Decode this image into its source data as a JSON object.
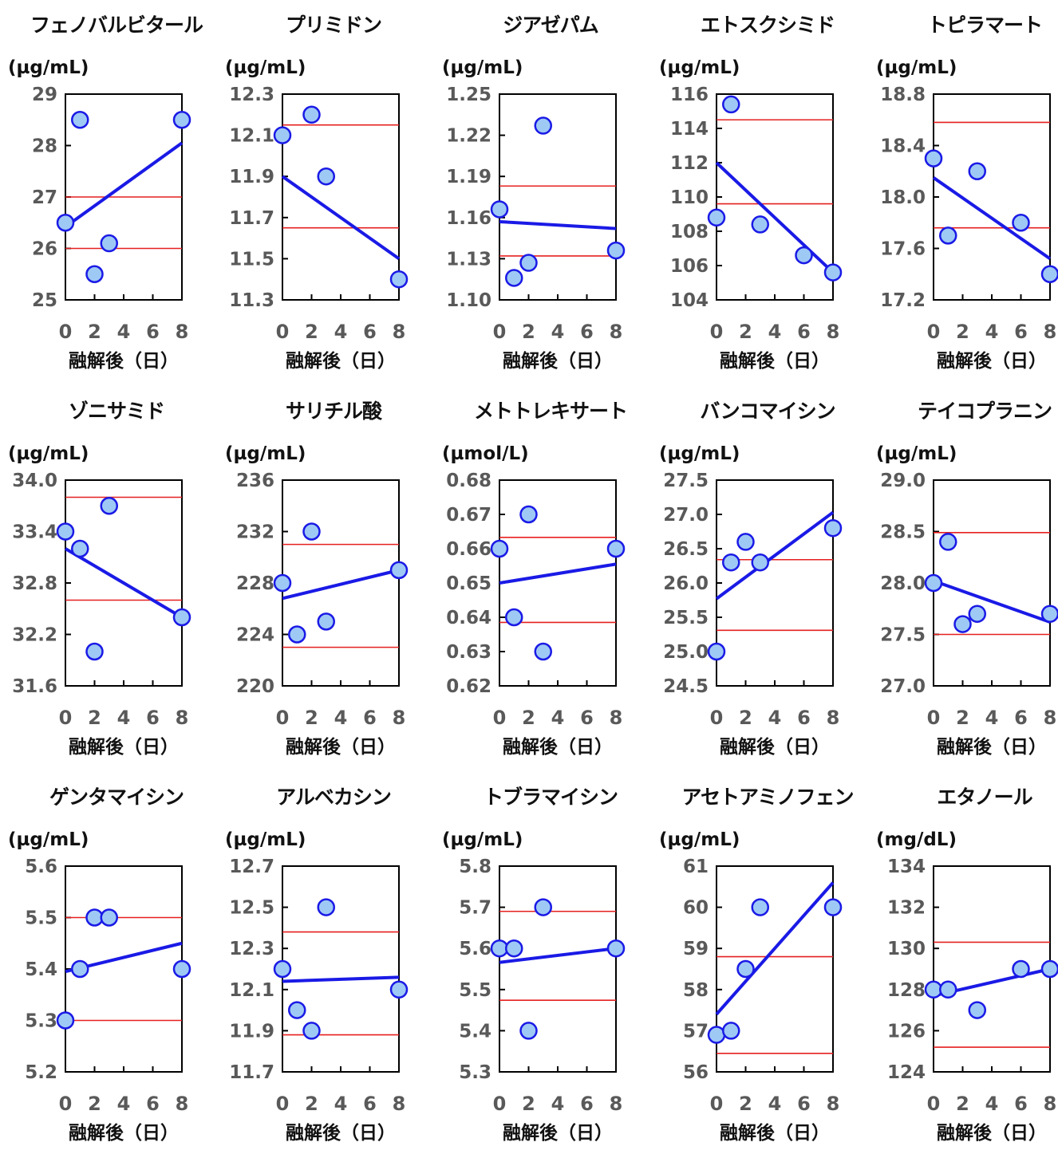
{
  "colors": {
    "point_fill": "#9fc9f5",
    "point_stroke": "#1a1ae6",
    "trend": "#1a1ae6",
    "ref_line": "#e62020",
    "tick_text": "#595959"
  },
  "chart_data": [
    {
      "type": "scatter",
      "title": "フェノバルビタール",
      "unit": "(µg/mL)",
      "ylim": [
        25,
        29
      ],
      "yticks": [
        "25",
        "26",
        "27",
        "28",
        "29"
      ],
      "xticks": [
        "0",
        "2",
        "4",
        "6",
        "8"
      ],
      "xlabel": "融解後（日）",
      "points": [
        [
          0,
          26.5
        ],
        [
          1,
          28.5
        ],
        [
          2,
          25.5
        ],
        [
          3,
          26.1
        ],
        [
          8,
          28.5
        ]
      ],
      "trend": [
        [
          0,
          26.42
        ],
        [
          8,
          28.05
        ]
      ],
      "ref_lines": [
        27.0,
        26.0
      ]
    },
    {
      "type": "scatter",
      "title": "プリミドン",
      "unit": "(µg/mL)",
      "ylim": [
        11.3,
        12.3
      ],
      "yticks": [
        "11.3",
        "11.5",
        "11.7",
        "11.9",
        "12.1",
        "12.3"
      ],
      "xticks": [
        "0",
        "2",
        "4",
        "6",
        "8"
      ],
      "xlabel": "融解後（日）",
      "points": [
        [
          0,
          12.1
        ],
        [
          2,
          12.2
        ],
        [
          3,
          11.9
        ],
        [
          8,
          11.4
        ]
      ],
      "trend": [
        [
          0,
          11.9
        ],
        [
          8,
          11.5
        ]
      ],
      "ref_lines": [
        12.15,
        11.65
      ]
    },
    {
      "type": "scatter",
      "title": "ジアゼパム",
      "unit": "(µg/mL)",
      "ylim": [
        1.1,
        1.25
      ],
      "yticks": [
        "1.10",
        "1.13",
        "1.16",
        "1.19",
        "1.22",
        "1.25"
      ],
      "xticks": [
        "0",
        "2",
        "4",
        "6",
        "8"
      ],
      "xlabel": "融解後（日）",
      "points": [
        [
          0,
          1.166
        ],
        [
          1,
          1.116
        ],
        [
          2,
          1.127
        ],
        [
          3,
          1.227
        ],
        [
          8,
          1.136
        ]
      ],
      "trend": [
        [
          0,
          1.157
        ],
        [
          8,
          1.152
        ]
      ],
      "ref_lines": [
        1.183,
        1.132
      ]
    },
    {
      "type": "scatter",
      "title": "エトスクシミド",
      "unit": "(µg/mL)",
      "ylim": [
        104,
        116
      ],
      "yticks": [
        "104",
        "106",
        "108",
        "110",
        "112",
        "114",
        "116"
      ],
      "xticks": [
        "0",
        "2",
        "4",
        "6",
        "8"
      ],
      "xlabel": "融解後（日）",
      "points": [
        [
          0,
          108.8
        ],
        [
          1,
          115.4
        ],
        [
          3,
          108.4
        ],
        [
          6,
          106.6
        ],
        [
          8,
          105.6
        ]
      ],
      "trend": [
        [
          0,
          112.0
        ],
        [
          8,
          105.6
        ]
      ],
      "ref_lines": [
        114.5,
        109.6
      ]
    },
    {
      "type": "scatter",
      "title": "トピラマート",
      "unit": "(µg/mL)",
      "ylim": [
        17.2,
        18.8
      ],
      "yticks": [
        "17.2",
        "17.6",
        "18.0",
        "18.4",
        "18.8"
      ],
      "xticks": [
        "0",
        "2",
        "4",
        "6",
        "8"
      ],
      "xlabel": "融解後（日）",
      "points": [
        [
          0,
          18.3
        ],
        [
          1,
          17.7
        ],
        [
          3,
          18.2
        ],
        [
          6,
          17.8
        ],
        [
          8,
          17.4
        ]
      ],
      "trend": [
        [
          0,
          18.15
        ],
        [
          8,
          17.52
        ]
      ],
      "ref_lines": [
        18.58,
        17.76
      ]
    },
    {
      "type": "scatter",
      "title": "ゾニサミド",
      "unit": "(µg/mL)",
      "ylim": [
        31.6,
        34.0
      ],
      "yticks": [
        "31.6",
        "32.2",
        "32.8",
        "33.4",
        "34.0"
      ],
      "xticks": [
        "0",
        "2",
        "4",
        "6",
        "8"
      ],
      "xlabel": "融解後（日）",
      "points": [
        [
          0,
          33.4
        ],
        [
          1,
          33.2
        ],
        [
          2,
          32.0
        ],
        [
          3,
          33.7
        ],
        [
          8,
          32.4
        ]
      ],
      "trend": [
        [
          0,
          33.2
        ],
        [
          8,
          32.4
        ]
      ],
      "ref_lines": [
        33.8,
        32.6
      ]
    },
    {
      "type": "scatter",
      "title": "サリチル酸",
      "unit": "(µg/mL)",
      "ylim": [
        220,
        236
      ],
      "yticks": [
        "220",
        "224",
        "228",
        "232",
        "236"
      ],
      "xticks": [
        "0",
        "2",
        "4",
        "6",
        "8"
      ],
      "xlabel": "融解後（日）",
      "points": [
        [
          0,
          228
        ],
        [
          1,
          224
        ],
        [
          2,
          232
        ],
        [
          3,
          225
        ],
        [
          8,
          229
        ]
      ],
      "trend": [
        [
          0,
          226.8
        ],
        [
          8,
          229.0
        ]
      ],
      "ref_lines": [
        231.0,
        223.0
      ]
    },
    {
      "type": "scatter",
      "title": "メトトレキサート",
      "unit": "(µmol/L)",
      "ylim": [
        0.62,
        0.68
      ],
      "yticks": [
        "0.62",
        "0.63",
        "0.64",
        "0.65",
        "0.66",
        "0.67",
        "0.68"
      ],
      "xticks": [
        "0",
        "2",
        "4",
        "6",
        "8"
      ],
      "xlabel": "融解後（日）",
      "points": [
        [
          0,
          0.66
        ],
        [
          1,
          0.64
        ],
        [
          2,
          0.67
        ],
        [
          3,
          0.63
        ],
        [
          8,
          0.66
        ]
      ],
      "trend": [
        [
          0,
          0.65
        ],
        [
          8,
          0.6555
        ]
      ],
      "ref_lines": [
        0.6633,
        0.6385
      ]
    },
    {
      "type": "scatter",
      "title": "バンコマイシン",
      "unit": "(µg/mL)",
      "ylim": [
        24.5,
        27.5
      ],
      "yticks": [
        "24.5",
        "25.0",
        "25.5",
        "26.0",
        "26.5",
        "27.0",
        "27.5"
      ],
      "xticks": [
        "0",
        "2",
        "4",
        "6",
        "8"
      ],
      "xlabel": "融解後（日）",
      "points": [
        [
          0,
          25.0
        ],
        [
          1,
          26.3
        ],
        [
          2,
          26.6
        ],
        [
          3,
          26.3
        ],
        [
          8,
          26.8
        ]
      ],
      "trend": [
        [
          0,
          25.77
        ],
        [
          8,
          27.03
        ]
      ],
      "ref_lines": [
        26.34,
        25.31
      ]
    },
    {
      "type": "scatter",
      "title": "テイコプラニン",
      "unit": "(µg/mL)",
      "ylim": [
        27.0,
        29.0
      ],
      "yticks": [
        "27.0",
        "27.5",
        "28.0",
        "28.5",
        "29.0"
      ],
      "xticks": [
        "0",
        "2",
        "4",
        "6",
        "8"
      ],
      "xlabel": "融解後（日）",
      "points": [
        [
          0,
          28.0
        ],
        [
          1,
          28.4
        ],
        [
          2,
          27.6
        ],
        [
          3,
          27.7
        ],
        [
          8,
          27.7
        ]
      ],
      "trend": [
        [
          0,
          28.02
        ],
        [
          8,
          27.62
        ]
      ],
      "ref_lines": [
        28.49,
        27.5
      ]
    },
    {
      "type": "scatter",
      "title": "ゲンタマイシン",
      "unit": "(µg/mL)",
      "ylim": [
        5.2,
        5.6
      ],
      "yticks": [
        "5.2",
        "5.3",
        "5.4",
        "5.5",
        "5.6"
      ],
      "xticks": [
        "0",
        "2",
        "4",
        "6",
        "8"
      ],
      "xlabel": "融解後（日）",
      "points": [
        [
          0,
          5.3
        ],
        [
          1,
          5.4
        ],
        [
          2,
          5.5
        ],
        [
          3,
          5.5
        ],
        [
          8,
          5.4
        ]
      ],
      "trend": [
        [
          0,
          5.395
        ],
        [
          8,
          5.45
        ]
      ],
      "ref_lines": [
        5.5,
        5.3
      ]
    },
    {
      "type": "scatter",
      "title": "アルベカシン",
      "unit": "(µg/mL)",
      "ylim": [
        11.7,
        12.7
      ],
      "yticks": [
        "11.7",
        "11.9",
        "12.1",
        "12.3",
        "12.5",
        "12.7"
      ],
      "xticks": [
        "0",
        "2",
        "4",
        "6",
        "8"
      ],
      "xlabel": "融解後（日）",
      "points": [
        [
          0,
          12.2
        ],
        [
          1,
          12.0
        ],
        [
          2,
          11.9
        ],
        [
          3,
          12.5
        ],
        [
          8,
          12.1
        ]
      ],
      "trend": [
        [
          0,
          12.14
        ],
        [
          8,
          12.16
        ]
      ],
      "ref_lines": [
        12.38,
        11.88
      ]
    },
    {
      "type": "scatter",
      "title": "トブラマイシン",
      "unit": "(µg/mL)",
      "ylim": [
        5.3,
        5.8
      ],
      "yticks": [
        "5.3",
        "5.4",
        "5.5",
        "5.6",
        "5.7",
        "5.8"
      ],
      "xticks": [
        "0",
        "2",
        "4",
        "6",
        "8"
      ],
      "xlabel": "融解後（日）",
      "points": [
        [
          0,
          5.6
        ],
        [
          1,
          5.6
        ],
        [
          2,
          5.4
        ],
        [
          3,
          5.7
        ],
        [
          8,
          5.6
        ]
      ],
      "trend": [
        [
          0,
          5.566
        ],
        [
          8,
          5.6
        ]
      ],
      "ref_lines": [
        5.69,
        5.474
      ]
    },
    {
      "type": "scatter",
      "title": "アセトアミノフェン",
      "unit": "(µg/mL)",
      "ylim": [
        56,
        61
      ],
      "yticks": [
        "56",
        "57",
        "58",
        "59",
        "60",
        "61"
      ],
      "xticks": [
        "0",
        "2",
        "4",
        "6",
        "8"
      ],
      "xlabel": "融解後（日）",
      "points": [
        [
          0,
          56.9
        ],
        [
          1,
          57.0
        ],
        [
          2,
          58.5
        ],
        [
          3,
          60.0
        ],
        [
          8,
          60.0
        ]
      ],
      "trend": [
        [
          0,
          57.4
        ],
        [
          8,
          60.6
        ]
      ],
      "ref_lines": [
        58.8,
        56.45
      ]
    },
    {
      "type": "scatter",
      "title": "エタノール",
      "unit": "(mg/dL)",
      "ylim": [
        124,
        134
      ],
      "yticks": [
        "124",
        "126",
        "128",
        "130",
        "132",
        "134"
      ],
      "xticks": [
        "0",
        "2",
        "4",
        "6",
        "8"
      ],
      "xlabel": "融解後（日）",
      "points": [
        [
          0,
          128
        ],
        [
          1,
          128
        ],
        [
          3,
          127
        ],
        [
          6,
          129
        ],
        [
          8,
          129
        ]
      ],
      "trend": [
        [
          0,
          127.7
        ],
        [
          8,
          129.0
        ]
      ],
      "ref_lines": [
        130.3,
        125.2
      ]
    }
  ]
}
